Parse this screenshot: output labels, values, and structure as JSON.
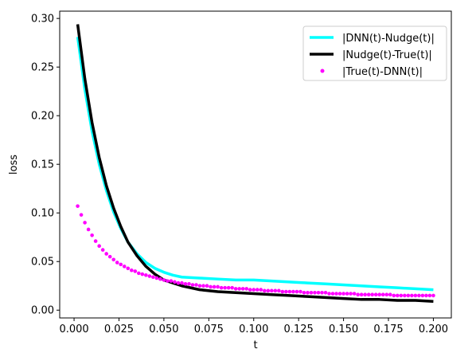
{
  "chart_data": {
    "type": "line",
    "xlabel": "t",
    "ylabel": "loss",
    "xlim": [
      -0.008,
      0.21
    ],
    "ylim": [
      -0.008,
      0.3075
    ],
    "xticks": [
      0.0,
      0.025,
      0.05,
      0.075,
      0.1,
      0.125,
      0.15,
      0.175,
      0.2
    ],
    "xtick_labels": [
      "0.000",
      "0.025",
      "0.050",
      "0.075",
      "0.100",
      "0.125",
      "0.150",
      "0.175",
      "0.200"
    ],
    "yticks": [
      0.0,
      0.05,
      0.1,
      0.15,
      0.2,
      0.25,
      0.3
    ],
    "ytick_labels": [
      "0.00",
      "0.05",
      "0.10",
      "0.15",
      "0.20",
      "0.25",
      "0.30"
    ],
    "grid": false,
    "legend_position": "top-right",
    "series": [
      {
        "name": "|DNN(t)-Nudge(t)|",
        "style": "line",
        "color": "#00ffff",
        "x": [
          0.002,
          0.006,
          0.01,
          0.014,
          0.018,
          0.022,
          0.026,
          0.03,
          0.035,
          0.04,
          0.045,
          0.05,
          0.055,
          0.06,
          0.07,
          0.08,
          0.09,
          0.1,
          0.11,
          0.12,
          0.13,
          0.14,
          0.15,
          0.16,
          0.17,
          0.18,
          0.19,
          0.2
        ],
        "y": [
          0.281,
          0.227,
          0.184,
          0.15,
          0.123,
          0.101,
          0.084,
          0.07,
          0.058,
          0.049,
          0.043,
          0.039,
          0.036,
          0.034,
          0.033,
          0.032,
          0.031,
          0.031,
          0.03,
          0.029,
          0.028,
          0.027,
          0.026,
          0.025,
          0.024,
          0.023,
          0.022,
          0.021
        ]
      },
      {
        "name": "|Nudge(t)-True(t)|",
        "style": "line",
        "color": "#000000",
        "x": [
          0.002,
          0.006,
          0.01,
          0.014,
          0.018,
          0.022,
          0.026,
          0.03,
          0.035,
          0.04,
          0.045,
          0.05,
          0.055,
          0.06,
          0.07,
          0.08,
          0.09,
          0.1,
          0.11,
          0.12,
          0.13,
          0.14,
          0.15,
          0.16,
          0.17,
          0.18,
          0.19,
          0.2
        ],
        "y": [
          0.294,
          0.238,
          0.193,
          0.157,
          0.128,
          0.105,
          0.086,
          0.07,
          0.056,
          0.045,
          0.037,
          0.031,
          0.028,
          0.025,
          0.021,
          0.019,
          0.018,
          0.017,
          0.016,
          0.015,
          0.014,
          0.013,
          0.012,
          0.011,
          0.011,
          0.01,
          0.01,
          0.009
        ]
      },
      {
        "name": "|True(t)-DNN(t)|",
        "style": "scatter",
        "color": "#ff00ff",
        "x": [
          0.002,
          0.004,
          0.006,
          0.008,
          0.01,
          0.012,
          0.014,
          0.016,
          0.018,
          0.02,
          0.022,
          0.024,
          0.026,
          0.028,
          0.03,
          0.032,
          0.034,
          0.036,
          0.038,
          0.04,
          0.042,
          0.044,
          0.046,
          0.048,
          0.05,
          0.052,
          0.054,
          0.056,
          0.058,
          0.06,
          0.062,
          0.064,
          0.066,
          0.068,
          0.07,
          0.072,
          0.074,
          0.076,
          0.078,
          0.08,
          0.082,
          0.084,
          0.086,
          0.088,
          0.09,
          0.092,
          0.094,
          0.096,
          0.098,
          0.1,
          0.102,
          0.104,
          0.106,
          0.108,
          0.11,
          0.112,
          0.114,
          0.116,
          0.118,
          0.12,
          0.122,
          0.124,
          0.126,
          0.128,
          0.13,
          0.132,
          0.134,
          0.136,
          0.138,
          0.14,
          0.142,
          0.144,
          0.146,
          0.148,
          0.15,
          0.152,
          0.154,
          0.156,
          0.158,
          0.16,
          0.162,
          0.164,
          0.166,
          0.168,
          0.17,
          0.172,
          0.174,
          0.176,
          0.178,
          0.18,
          0.182,
          0.184,
          0.186,
          0.188,
          0.19,
          0.192,
          0.194,
          0.196,
          0.198,
          0.2
        ],
        "y": [
          0.107,
          0.098,
          0.09,
          0.083,
          0.077,
          0.071,
          0.066,
          0.062,
          0.058,
          0.055,
          0.052,
          0.049,
          0.047,
          0.045,
          0.043,
          0.041,
          0.04,
          0.038,
          0.037,
          0.036,
          0.035,
          0.034,
          0.033,
          0.032,
          0.031,
          0.03,
          0.03,
          0.029,
          0.028,
          0.028,
          0.027,
          0.027,
          0.026,
          0.026,
          0.025,
          0.025,
          0.025,
          0.024,
          0.024,
          0.024,
          0.023,
          0.023,
          0.023,
          0.023,
          0.022,
          0.022,
          0.022,
          0.022,
          0.021,
          0.021,
          0.021,
          0.021,
          0.02,
          0.02,
          0.02,
          0.02,
          0.02,
          0.019,
          0.019,
          0.019,
          0.019,
          0.019,
          0.019,
          0.018,
          0.018,
          0.018,
          0.018,
          0.018,
          0.018,
          0.018,
          0.017,
          0.017,
          0.017,
          0.017,
          0.017,
          0.017,
          0.017,
          0.017,
          0.016,
          0.016,
          0.016,
          0.016,
          0.016,
          0.016,
          0.016,
          0.016,
          0.016,
          0.016,
          0.015,
          0.015,
          0.015,
          0.015,
          0.015,
          0.015,
          0.015,
          0.015,
          0.015,
          0.015,
          0.015,
          0.015
        ]
      }
    ]
  }
}
